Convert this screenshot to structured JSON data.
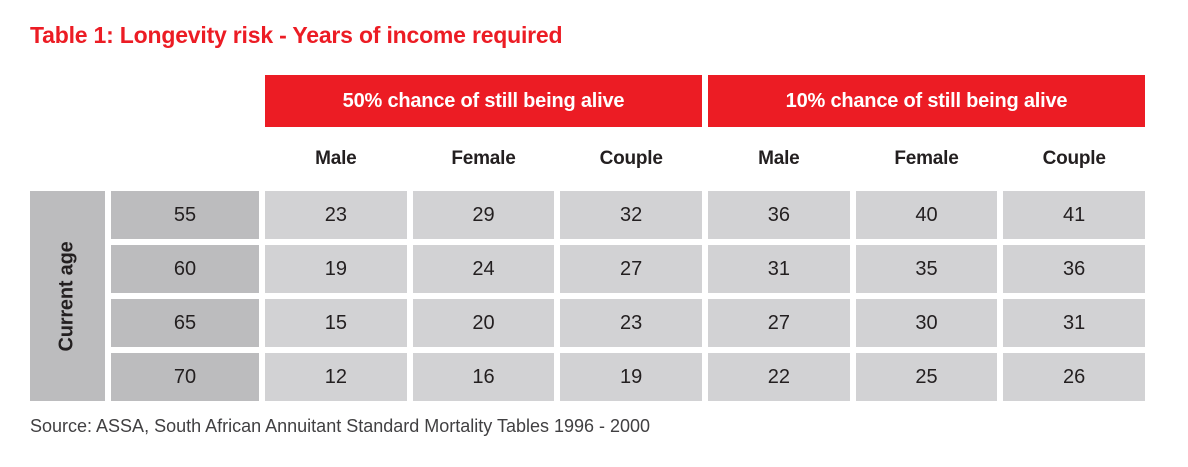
{
  "title": "Table 1: Longevity risk - Years of income required",
  "table": {
    "band_headers": [
      "50% chance of still being alive",
      "10% chance of still being alive"
    ],
    "sub_headers": [
      "Male",
      "Female",
      "Couple",
      "Male",
      "Female",
      "Couple"
    ],
    "row_axis_label": "Current age",
    "rows": [
      {
        "age": "55",
        "values": [
          "23",
          "29",
          "32",
          "36",
          "40",
          "41"
        ]
      },
      {
        "age": "60",
        "values": [
          "19",
          "24",
          "27",
          "31",
          "35",
          "36"
        ]
      },
      {
        "age": "65",
        "values": [
          "15",
          "20",
          "23",
          "27",
          "30",
          "31"
        ]
      },
      {
        "age": "70",
        "values": [
          "12",
          "16",
          "19",
          "22",
          "25",
          "26"
        ]
      }
    ]
  },
  "source": "Source: ASSA, South African Annuitant Standard Mortality Tables 1996 - 2000",
  "colors": {
    "accent_red": "#EC1C24",
    "cell_gray": "#D2D2D4",
    "axis_gray": "#BCBCBE",
    "text_dark": "#231F20",
    "source_gray": "#414042"
  }
}
